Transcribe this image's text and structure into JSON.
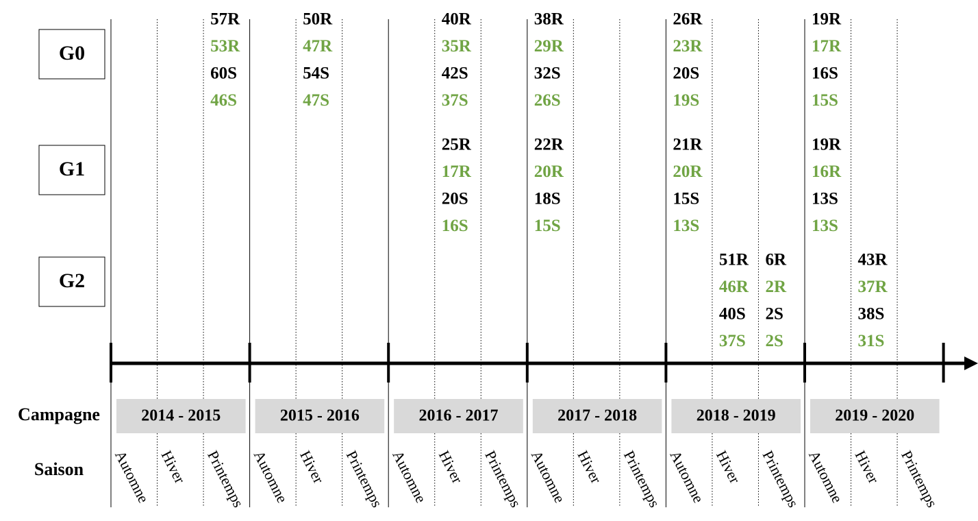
{
  "labels": {
    "campaign": "Campagne",
    "season": "Saison"
  },
  "campaigns": [
    "2014 - 2015",
    "2015 - 2016",
    "2016 - 2017",
    "2017 - 2018",
    "2018 - 2019",
    "2019 - 2020"
  ],
  "seasons": [
    "Automne",
    "Hiver",
    "Printemps"
  ],
  "groups": [
    {
      "label": "G0",
      "entries": [
        [
          "57R",
          "53R",
          "60S",
          "46S"
        ],
        [
          "50R",
          "47R",
          "54S",
          "47S"
        ],
        [
          "40R",
          "35R",
          "42S",
          "37S"
        ],
        [
          "38R",
          "29R",
          "32S",
          "26S"
        ],
        [
          "26R",
          "23R",
          "20S",
          "19S"
        ],
        [
          "19R",
          "17R",
          "16S",
          "15S"
        ]
      ]
    },
    {
      "label": "G1",
      "entries": [
        [
          "25R",
          "17R",
          "20S",
          "16S"
        ],
        [
          "22R",
          "20R",
          "18S",
          "15S"
        ],
        [
          "21R",
          "20R",
          "15S",
          "13S"
        ],
        [
          "19R",
          "16R",
          "13S",
          "13S"
        ]
      ]
    },
    {
      "label": "G2",
      "entries": [
        [
          "51R",
          "46R",
          "40S",
          "37S"
        ],
        [
          "6R",
          "2R",
          "2S",
          "2S"
        ],
        [
          "43R",
          "37R",
          "38S",
          "31S"
        ]
      ]
    }
  ]
}
